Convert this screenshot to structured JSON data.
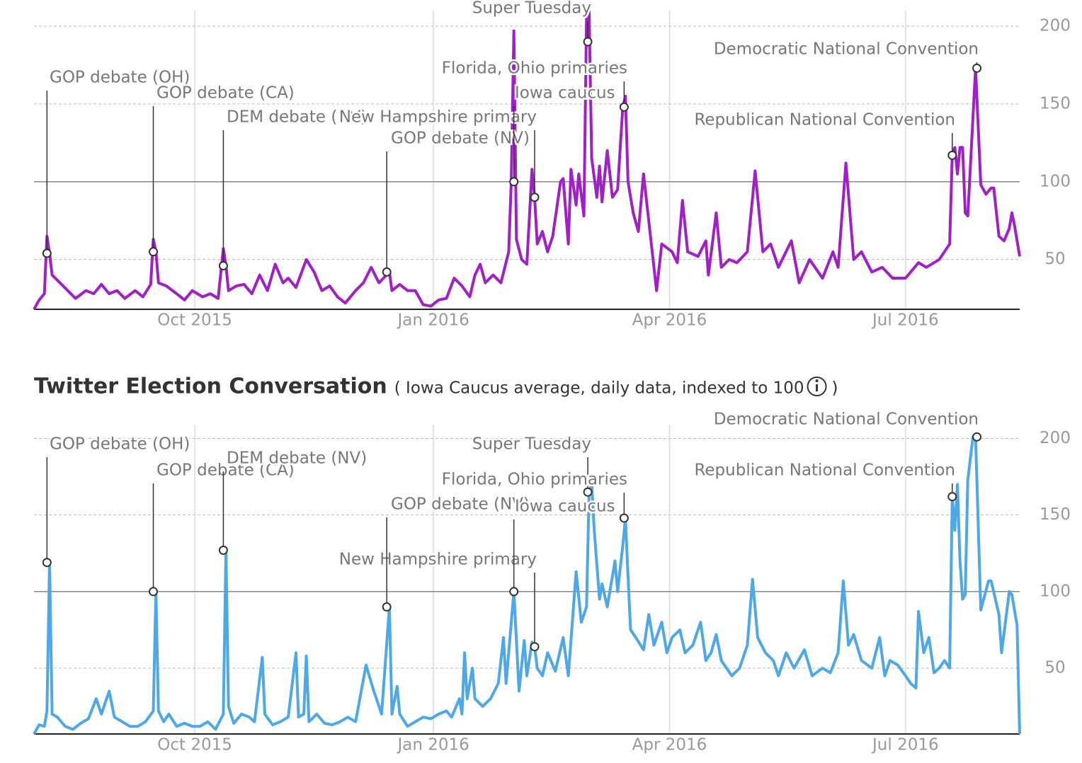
{
  "chart_data": [
    {
      "type": "line",
      "color": "#a11fc9",
      "xlim": [
        0,
        380
      ],
      "ylim": [
        18,
        210
      ],
      "xticks": [
        {
          "value": 62,
          "label": "Oct 2015"
        },
        {
          "value": 154,
          "label": "Jan 2016"
        },
        {
          "value": 245,
          "label": "Apr 2016"
        },
        {
          "value": 336,
          "label": "Jul 2016"
        }
      ],
      "yticks": [
        50,
        100,
        150,
        200
      ],
      "hline": 100,
      "grid": true,
      "x": [
        0,
        2,
        4,
        5,
        6,
        7,
        10,
        13,
        16,
        20,
        23,
        26,
        29,
        32,
        35,
        39,
        42,
        45,
        46,
        47,
        48,
        51,
        55,
        58,
        61,
        65,
        68,
        71,
        73,
        74,
        75,
        78,
        81,
        84,
        87,
        90,
        93,
        96,
        98,
        101,
        105,
        108,
        111,
        114,
        117,
        120,
        124,
        127,
        130,
        133,
        137,
        138,
        141,
        144,
        147,
        150,
        153,
        156,
        159,
        162,
        165,
        168,
        170,
        172,
        174,
        177,
        180,
        183,
        184,
        185,
        186,
        188,
        190,
        192,
        193,
        194,
        196,
        198,
        200,
        203,
        204,
        206,
        207,
        209,
        210,
        212,
        213,
        214,
        215,
        217,
        218,
        219,
        221,
        223,
        225,
        227,
        228,
        229,
        231,
        233,
        235,
        238,
        240,
        242,
        246,
        248,
        250,
        252,
        256,
        259,
        260,
        263,
        265,
        268,
        271,
        275,
        278,
        281,
        284,
        287,
        292,
        295,
        299,
        304,
        308,
        310,
        313,
        316,
        319,
        323,
        327,
        331,
        336,
        341,
        344,
        349,
        353,
        354,
        355,
        356,
        357,
        358,
        359,
        360,
        361,
        363,
        365,
        367,
        369,
        370,
        372,
        374,
        376,
        377,
        378,
        380
      ],
      "values": [
        18,
        24,
        28,
        65,
        54,
        40,
        35,
        30,
        25,
        30,
        28,
        34,
        28,
        30,
        25,
        30,
        26,
        34,
        63,
        55,
        35,
        33,
        28,
        24,
        30,
        26,
        28,
        25,
        57,
        46,
        30,
        33,
        34,
        28,
        40,
        30,
        47,
        35,
        38,
        32,
        50,
        42,
        30,
        33,
        26,
        22,
        30,
        35,
        45,
        35,
        42,
        30,
        34,
        30,
        30,
        21,
        20,
        24,
        25,
        38,
        33,
        26,
        40,
        47,
        35,
        40,
        35,
        55,
        100,
        197,
        63,
        50,
        47,
        108,
        90,
        60,
        68,
        55,
        65,
        100,
        102,
        60,
        108,
        85,
        105,
        78,
        205,
        210,
        115,
        90,
        110,
        87,
        120,
        90,
        95,
        148,
        155,
        100,
        80,
        68,
        105,
        60,
        30,
        60,
        55,
        48,
        88,
        55,
        52,
        62,
        40,
        80,
        45,
        50,
        48,
        55,
        107,
        55,
        60,
        45,
        62,
        35,
        50,
        38,
        55,
        45,
        112,
        50,
        55,
        42,
        45,
        38,
        38,
        48,
        45,
        50,
        60,
        117,
        122,
        105,
        122,
        122,
        80,
        78,
        110,
        173,
        98,
        92,
        96,
        96,
        65,
        62,
        70,
        80,
        72,
        52
      ],
      "annotations": [
        {
          "text": "GOP debate (OH)",
          "x": 5,
          "y": 54
        },
        {
          "text": "GOP debate (CA)",
          "x": 46,
          "y": 55
        },
        {
          "text": "DEM debate (NV)",
          "x": 73,
          "y": 46
        },
        {
          "text": "New Hampshire primary",
          "x": 193,
          "y": 90
        },
        {
          "text": "GOP debate (NV)",
          "x": 136,
          "y": 42
        },
        {
          "text": "Iowa caucus",
          "x": 185,
          "y": 100
        },
        {
          "text": "Super Tuesday",
          "x": 213.5,
          "y": 190
        },
        {
          "text": "Florida, Ohio primaries",
          "x": 227.5,
          "y": 148
        },
        {
          "text": "Republican National Convention",
          "x": 354,
          "y": 117
        },
        {
          "text": "Democratic National Convention",
          "x": 363.5,
          "y": 173
        }
      ]
    },
    {
      "type": "line",
      "color": "#4ea8e8",
      "title": "Twitter Election Conversation",
      "subtitle": "( Iowa Caucus average, daily data, indexed to 100",
      "subtitle_close": ")",
      "xlim": [
        0,
        380
      ],
      "ylim": [
        7,
        209
      ],
      "xticks": [
        {
          "value": 62,
          "label": "Oct 2015"
        },
        {
          "value": 154,
          "label": "Jan 2016"
        },
        {
          "value": 245,
          "label": "Apr 2016"
        },
        {
          "value": 336,
          "label": "Jul 2016"
        }
      ],
      "yticks": [
        50,
        100,
        150,
        200
      ],
      "hline": 100,
      "grid": true,
      "x": [
        0,
        2,
        4,
        5,
        6,
        7,
        9,
        12,
        15,
        18,
        21,
        24,
        26,
        29,
        31,
        34,
        37,
        40,
        43,
        46,
        47,
        48,
        50,
        52,
        55,
        58,
        61,
        64,
        67,
        70,
        73,
        74,
        75,
        77,
        80,
        83,
        85,
        88,
        89,
        92,
        95,
        98,
        101,
        102,
        104,
        105,
        106,
        109,
        112,
        115,
        118,
        121,
        124,
        128,
        131,
        134,
        137,
        138,
        140,
        141,
        144,
        147,
        150,
        153,
        156,
        159,
        161,
        164,
        165,
        166,
        167,
        169,
        170,
        173,
        176,
        179,
        181,
        182,
        185,
        187,
        189,
        190,
        192,
        193,
        194,
        196,
        198,
        201,
        204,
        206,
        209,
        211,
        213,
        214,
        215,
        216,
        218,
        219,
        221,
        224,
        225,
        227,
        228,
        229,
        230,
        232,
        235,
        237,
        239,
        242,
        244,
        246,
        249,
        251,
        254,
        257,
        259,
        261,
        263,
        265,
        269,
        272,
        275,
        277,
        279,
        282,
        285,
        287,
        290,
        293,
        297,
        300,
        304,
        307,
        310,
        312,
        314,
        316,
        319,
        323,
        326,
        328,
        330,
        333,
        336,
        338,
        340,
        341,
        343,
        345,
        347,
        349,
        351,
        353,
        354,
        355,
        356,
        357,
        358,
        359,
        360,
        362,
        363,
        365,
        368,
        369,
        372,
        373,
        376,
        377,
        379,
        380
      ],
      "values": [
        7,
        13,
        12,
        22,
        119,
        20,
        18,
        12,
        10,
        14,
        17,
        30,
        20,
        35,
        18,
        15,
        12,
        12,
        15,
        22,
        100,
        22,
        15,
        20,
        12,
        14,
        12,
        12,
        15,
        10,
        20,
        127,
        25,
        14,
        20,
        18,
        15,
        57,
        20,
        13,
        15,
        18,
        60,
        18,
        20,
        58,
        15,
        20,
        14,
        13,
        15,
        18,
        15,
        52,
        35,
        20,
        90,
        20,
        38,
        20,
        12,
        15,
        18,
        17,
        20,
        22,
        18,
        30,
        20,
        60,
        30,
        50,
        30,
        25,
        30,
        40,
        70,
        40,
        100,
        35,
        68,
        45,
        67,
        64,
        50,
        45,
        60,
        48,
        70,
        45,
        113,
        80,
        90,
        165,
        170,
        140,
        95,
        105,
        90,
        120,
        100,
        130,
        148,
        110,
        75,
        70,
        62,
        85,
        65,
        80,
        60,
        70,
        75,
        60,
        65,
        80,
        55,
        60,
        72,
        55,
        45,
        50,
        65,
        108,
        70,
        60,
        55,
        45,
        60,
        50,
        62,
        45,
        50,
        47,
        60,
        107,
        65,
        72,
        55,
        50,
        70,
        45,
        55,
        52,
        45,
        40,
        37,
        87,
        60,
        70,
        47,
        50,
        55,
        50,
        162,
        140,
        170,
        120,
        95,
        98,
        173,
        201,
        201,
        88,
        107,
        107,
        85,
        60,
        100,
        98,
        78,
        7
      ],
      "annotations": [
        {
          "text": "GOP debate (OH)",
          "x": 5,
          "y": 119
        },
        {
          "text": "GOP debate (CA)",
          "x": 46,
          "y": 100
        },
        {
          "text": "DEM debate (NV)",
          "x": 73,
          "y": 127
        },
        {
          "text": "New Hampshire primary",
          "x": 193,
          "y": 64
        },
        {
          "text": "GOP debate (NV)",
          "x": 136,
          "y": 90
        },
        {
          "text": "Iowa caucus",
          "x": 185,
          "y": 100
        },
        {
          "text": "Super Tuesday",
          "x": 213.5,
          "y": 165
        },
        {
          "text": "Florida, Ohio primaries",
          "x": 227.5,
          "y": 148
        },
        {
          "text": "Republican National Convention",
          "x": 354,
          "y": 162
        },
        {
          "text": "Democratic National Convention",
          "x": 363.5,
          "y": 201
        }
      ]
    }
  ]
}
